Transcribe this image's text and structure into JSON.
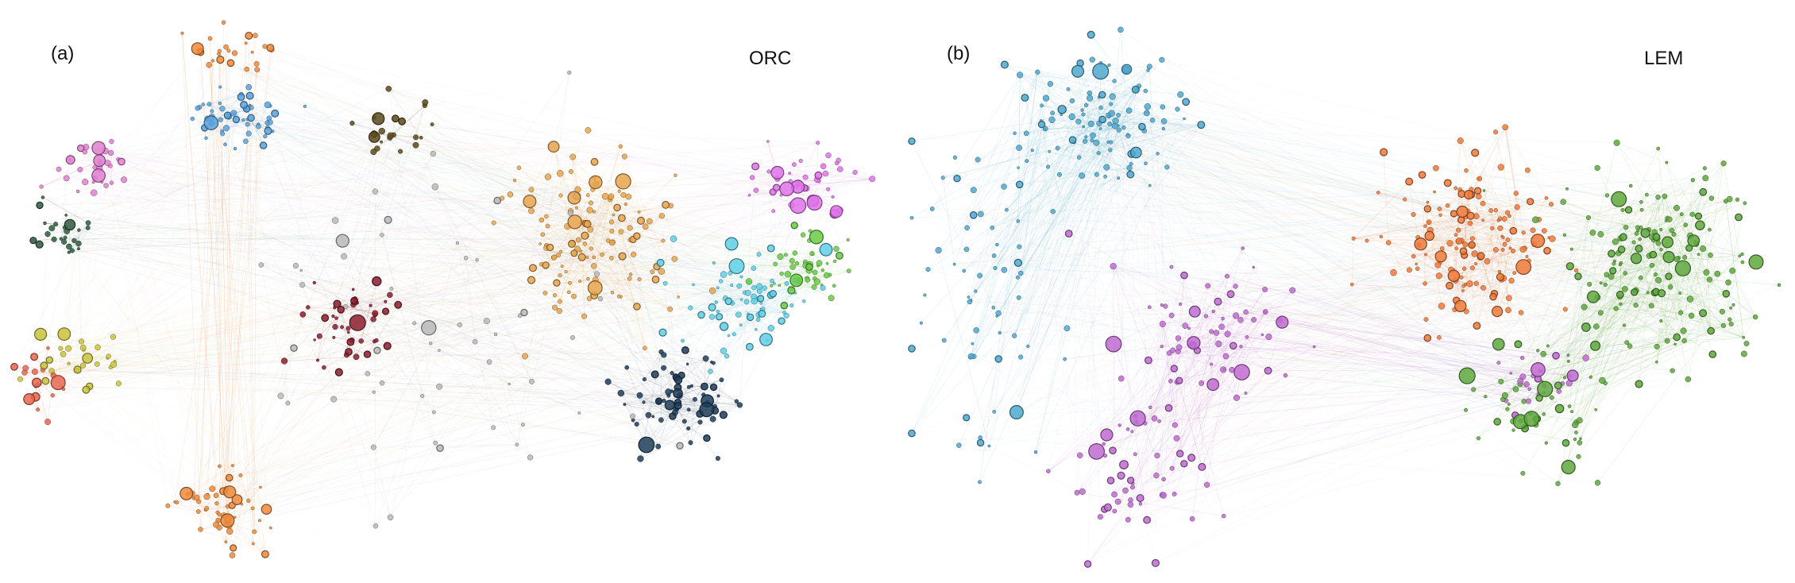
{
  "figure": {
    "panels": [
      {
        "tag": "(a)",
        "method": "ORC",
        "communities": [
          {
            "color": "#5aa2dc"
          },
          {
            "color": "#e07fd0"
          },
          {
            "color": "#2f5a3e"
          },
          {
            "color": "#c9c23c"
          },
          {
            "color": "#e8664f"
          },
          {
            "color": "#ee8a3c"
          },
          {
            "color": "#8a1f2e"
          },
          {
            "color": "#e8a44e"
          },
          {
            "color": "#e173ea"
          },
          {
            "color": "#5fcfe6"
          },
          {
            "color": "#6acb45"
          },
          {
            "color": "#1f3d5a"
          },
          {
            "color": "#5c4a1c"
          },
          {
            "color": "#b8b8b8"
          }
        ]
      },
      {
        "tag": "(b)",
        "method": "LEM",
        "communities": [
          {
            "color": "#4fa8cf"
          },
          {
            "color": "#bf6bd1"
          },
          {
            "color": "#ef7a3a"
          },
          {
            "color": "#5fa83e"
          }
        ]
      }
    ]
  }
}
